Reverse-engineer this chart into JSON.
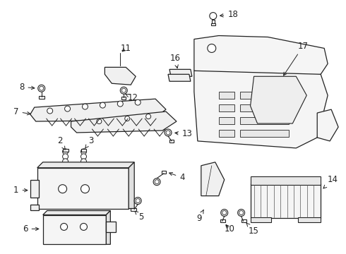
{
  "background_color": "#ffffff",
  "line_color": "#222222",
  "text_color": "#222222",
  "figsize": [
    4.9,
    3.6
  ],
  "dpi": 100
}
